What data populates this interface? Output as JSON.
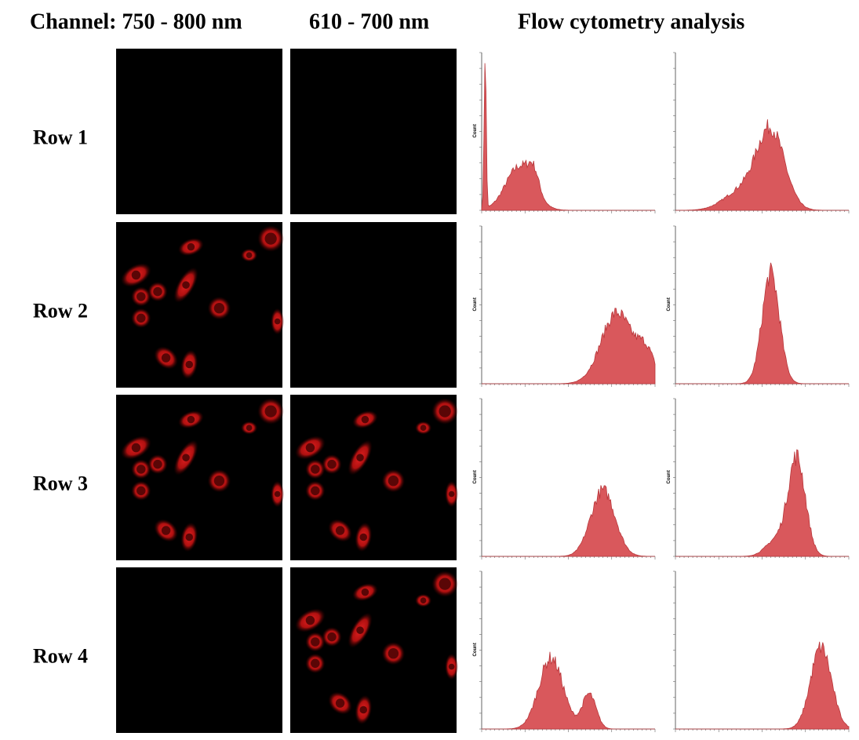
{
  "header": {
    "channel_1": "Channel: 750 - 800 nm",
    "channel_2": "610 - 700 nm",
    "flow": "Flow cytometry analysis"
  },
  "rows": [
    "Row 1",
    "Row 2",
    "Row 3",
    "Row 4"
  ],
  "axis_label": "Count"
}
